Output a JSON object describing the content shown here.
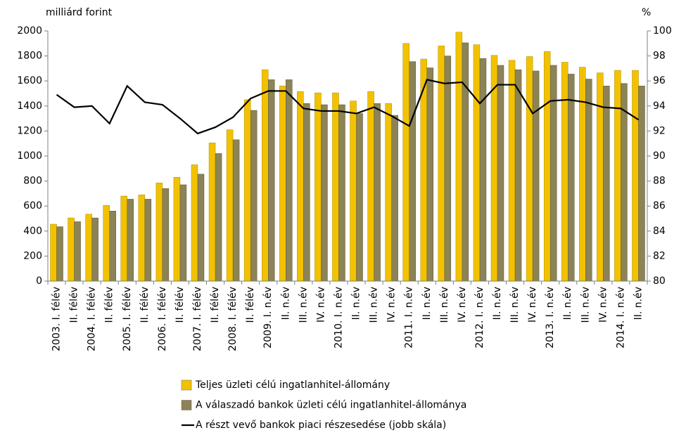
{
  "chart_data": {
    "type": "bar",
    "ylabel": "milliárd forint",
    "y2label": "%",
    "categories": [
      "2003. I. félév",
      "II. félév",
      "2004. I. félév",
      "II. félév",
      "2005. I. félév",
      "II. félév",
      "2006. I. félév",
      "II. félév",
      "2007. I. félév",
      "II. félév",
      "2008. I. félév",
      "II. félév",
      "2009. I. n.év",
      "II. n.év",
      "III. n.év",
      "IV. n.év",
      "2010. I. n.év",
      "II. n.év",
      "III. n.év",
      "IV. n.év",
      "2011. I. n.év",
      "II. n.év",
      "III. n.év",
      "IV. n.év",
      "2012. I. n.év",
      "II. n.év",
      "III. n.év",
      "IV. n.év",
      "2013. I. n.év",
      "II. n.év",
      "III. n.év",
      "IV. n.év",
      "2014. I. n.év",
      "II. n.év"
    ],
    "series": [
      {
        "name": "Teljes üzleti célú ingatlanhitel-állomány",
        "type": "bar",
        "color": "#f2c200",
        "values": [
          455,
          505,
          535,
          605,
          680,
          690,
          785,
          830,
          930,
          1105,
          1210,
          1450,
          1690,
          1560,
          1515,
          1505,
          1505,
          1440,
          1515,
          1420,
          1900,
          1775,
          1880,
          1990,
          1890,
          1805,
          1765,
          1795,
          1835,
          1750,
          1710,
          1665,
          1685,
          1685
        ]
      },
      {
        "name": "A válaszadó bankok üzleti célú ingatlanhitel-állománya",
        "type": "bar",
        "color": "#8c8356",
        "values": [
          435,
          475,
          505,
          560,
          655,
          655,
          740,
          770,
          855,
          1020,
          1130,
          1365,
          1610,
          1610,
          1420,
          1410,
          1410,
          1340,
          1420,
          1325,
          1755,
          1705,
          1800,
          1905,
          1780,
          1725,
          1690,
          1680,
          1725,
          1655,
          1615,
          1560,
          1580,
          1560
        ]
      },
      {
        "name": "A részt vevő bankok piaci részesedése (jobb skála)",
        "type": "line",
        "axis": "y2",
        "color": "#000000",
        "values": [
          94.9,
          93.9,
          94.0,
          92.6,
          95.6,
          94.3,
          94.1,
          93.0,
          91.8,
          92.3,
          93.1,
          94.6,
          95.2,
          95.2,
          93.8,
          93.6,
          93.6,
          93.4,
          93.9,
          93.2,
          92.4,
          96.1,
          95.8,
          95.9,
          94.2,
          95.7,
          95.7,
          93.4,
          94.4,
          94.5,
          94.3,
          93.9,
          93.8,
          92.9
        ]
      }
    ],
    "ylim": [
      0,
      2000
    ],
    "yticks": [
      0,
      200,
      400,
      600,
      800,
      1000,
      1200,
      1400,
      1600,
      1800,
      2000
    ],
    "y2lim": [
      80,
      100
    ],
    "y2ticks": [
      80,
      82,
      84,
      86,
      88,
      90,
      92,
      94,
      96,
      98,
      100
    ],
    "grid": false
  }
}
